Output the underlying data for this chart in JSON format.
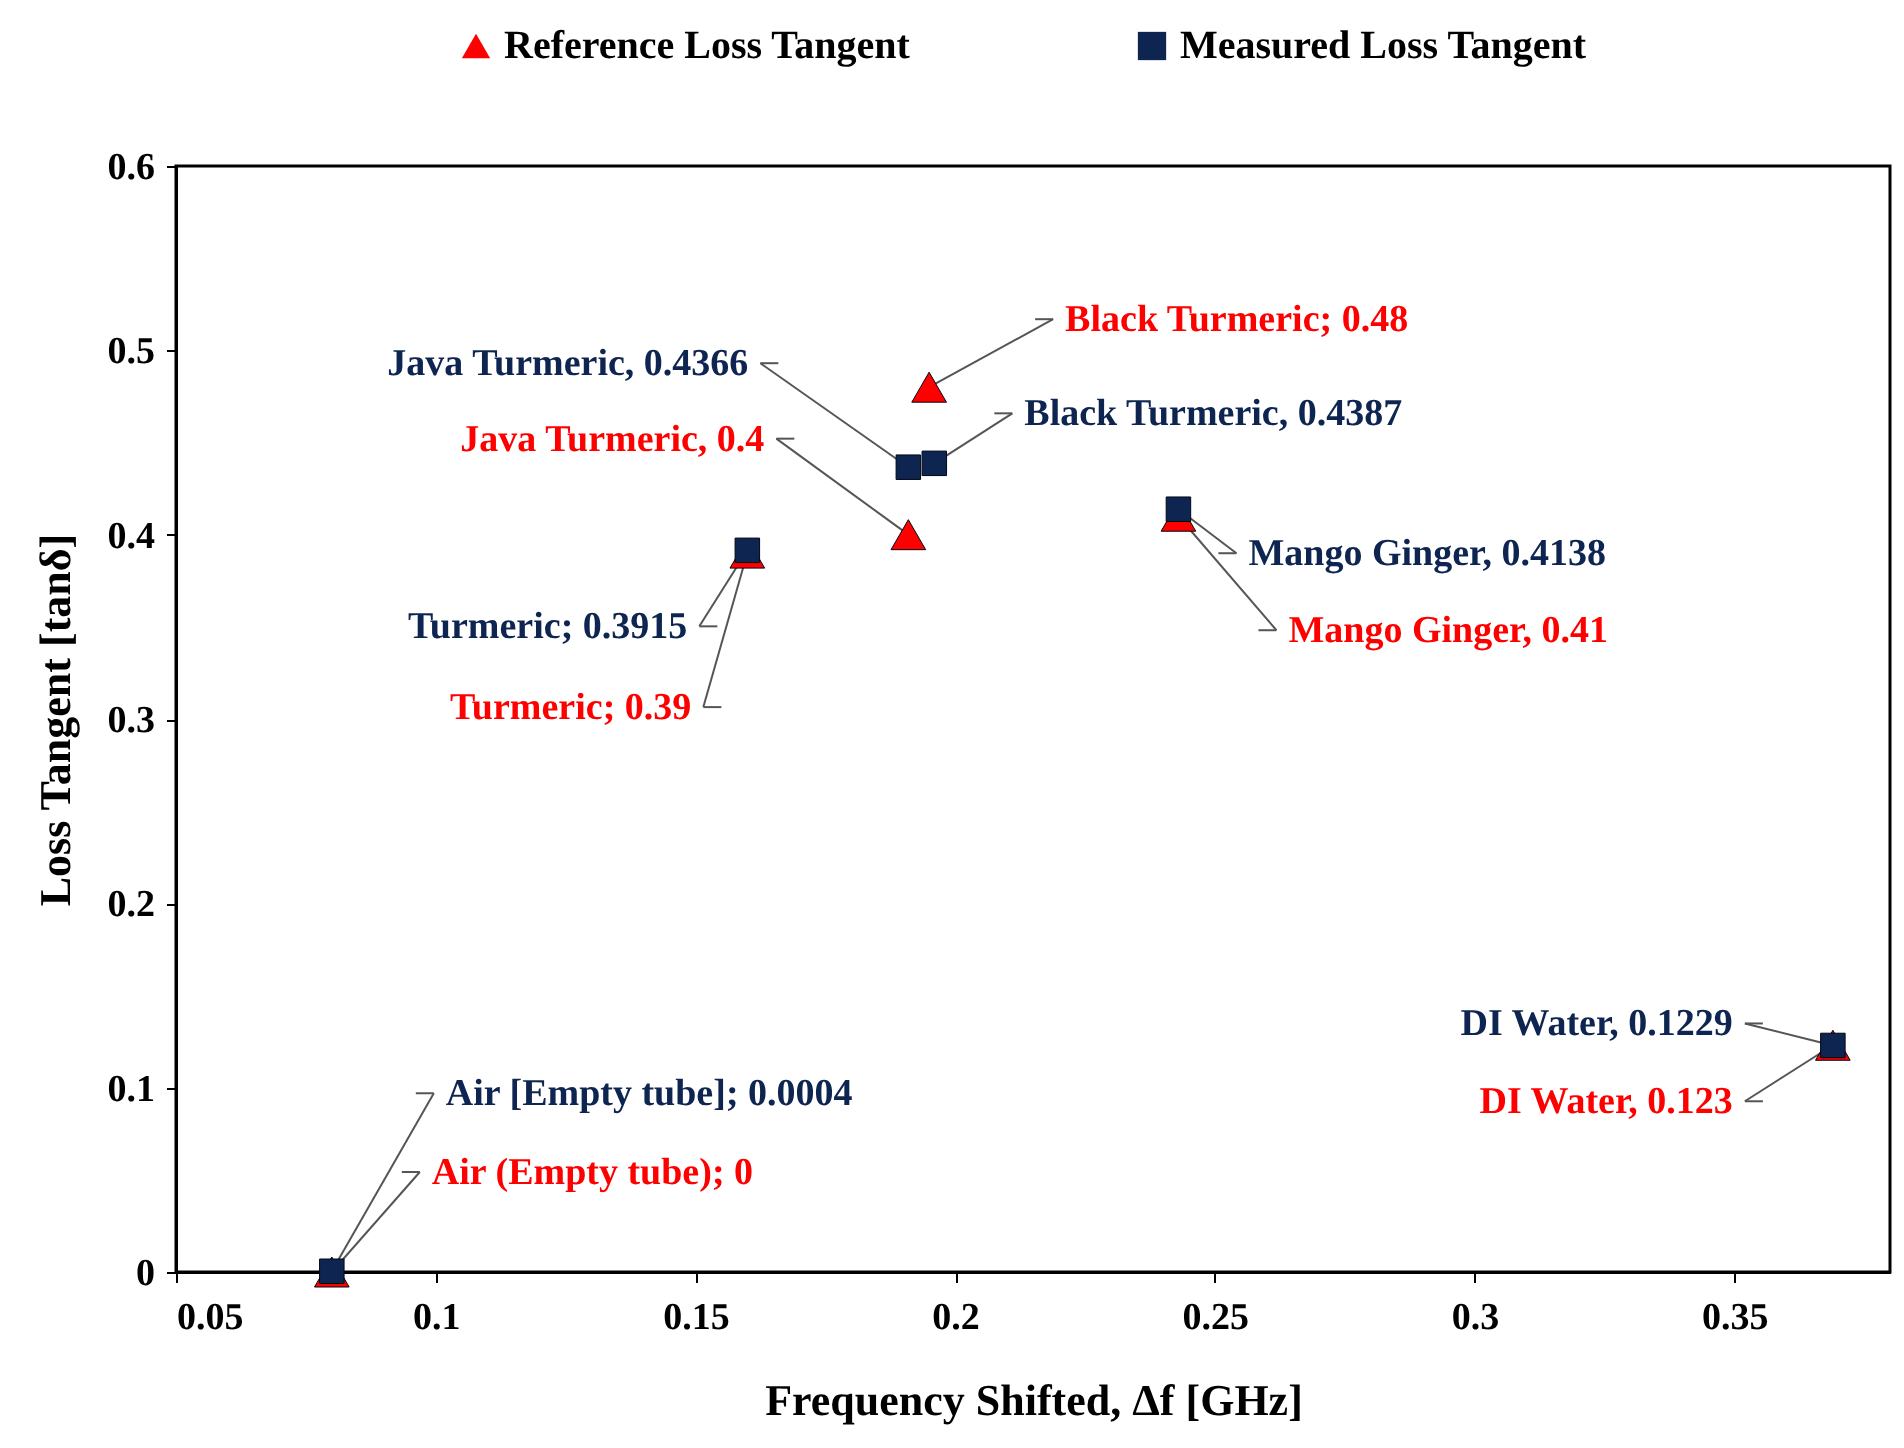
{
  "chart_data": {
    "type": "scatter",
    "xlabel": "Frequency Shifted, Δf [GHz]",
    "ylabel": "Loss Tangent [tanδ]",
    "xlim": [
      0.05,
      0.38
    ],
    "xticks": [
      0.05,
      0.1,
      0.15,
      0.2,
      0.25,
      0.3,
      0.35
    ],
    "ylim": [
      0,
      0.6
    ],
    "yticks": [
      0,
      0.1,
      0.2,
      0.3,
      0.4,
      0.5,
      0.6
    ],
    "grid": false,
    "legend": "top",
    "series": [
      {
        "name": "Reference Loss Tangent",
        "color": "#ff0000",
        "marker": "triangle",
        "x": [
          0.08,
          0.16,
          0.191,
          0.195,
          0.243,
          0.369
        ],
        "values": [
          0,
          0.39,
          0.4,
          0.48,
          0.41,
          0.123
        ],
        "value_labels": [
          "Air (Empty tube); 0",
          "Turmeric; 0.39",
          "Java Turmeric, 0.4",
          "Black Turmeric; 0.48",
          "Mango Ginger, 0.41",
          "DI Water, 0.123"
        ]
      },
      {
        "name": "Measured Loss Tangent",
        "color": "#0d2550",
        "marker": "square",
        "x": [
          0.08,
          0.16,
          0.191,
          0.196,
          0.243,
          0.369
        ],
        "values": [
          0.0004,
          0.3915,
          0.4366,
          0.4387,
          0.4138,
          0.1229
        ],
        "value_labels": [
          "Air [Empty tube]; 0.0004",
          "Turmeric; 0.3915",
          "Java Turmeric, 0.4366",
          "Black Turmeric, 0.4387",
          "Mango Ginger, 0.4138",
          "DI Water, 0.1229"
        ]
      }
    ]
  }
}
